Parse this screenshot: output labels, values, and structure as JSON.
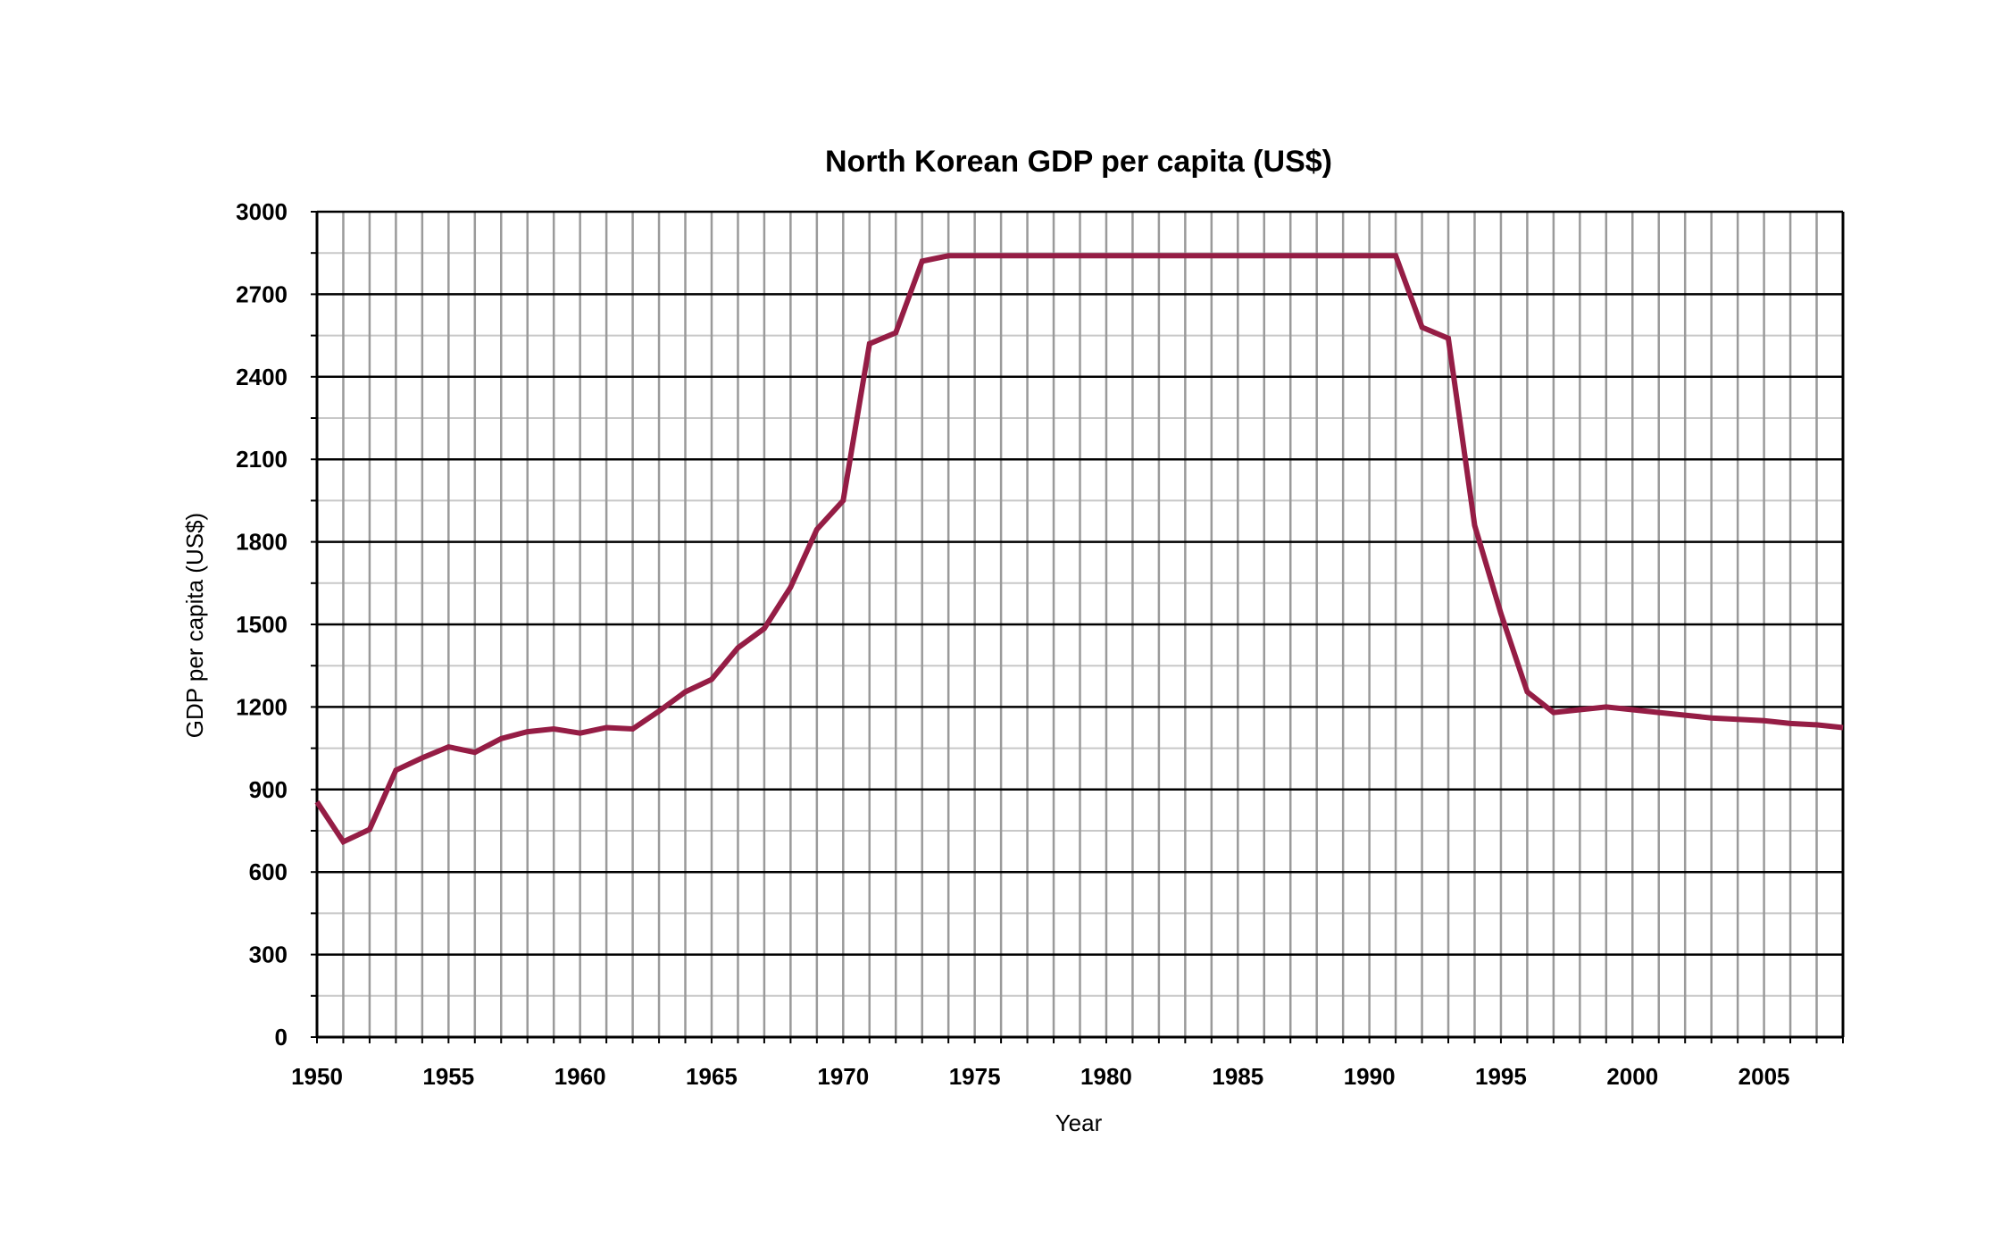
{
  "chart_data": {
    "type": "line",
    "title": "North Korean GDP per capita (US$)",
    "xlabel": "Year",
    "ylabel": "GDP per capita (US$)",
    "xlim": [
      1950,
      2008
    ],
    "ylim": [
      0,
      3000
    ],
    "grid": true,
    "line_color": "#951d45",
    "x_ticks": [
      "1950",
      "1955",
      "1960",
      "1965",
      "1970",
      "1975",
      "1980",
      "1985",
      "1990",
      "1995",
      "2000",
      "2005"
    ],
    "y_ticks": [
      "0",
      "300",
      "600",
      "900",
      "1200",
      "1500",
      "1800",
      "2100",
      "2400",
      "2700",
      "3000"
    ],
    "x": [
      1950,
      1951,
      1952,
      1953,
      1954,
      1955,
      1956,
      1957,
      1958,
      1959,
      1960,
      1961,
      1962,
      1963,
      1964,
      1965,
      1966,
      1967,
      1968,
      1969,
      1970,
      1971,
      1972,
      1973,
      1974,
      1975,
      1976,
      1977,
      1978,
      1979,
      1980,
      1981,
      1982,
      1983,
      1984,
      1985,
      1986,
      1987,
      1988,
      1989,
      1990,
      1991,
      1992,
      1993,
      1994,
      1995,
      1996,
      1997,
      1998,
      1999,
      2000,
      2001,
      2002,
      2003,
      2004,
      2005,
      2006,
      2007,
      2008
    ],
    "series": [
      {
        "values": [
          855,
          710,
          755,
          970,
          1015,
          1055,
          1035,
          1085,
          1110,
          1120,
          1105,
          1125,
          1120,
          1185,
          1255,
          1300,
          1415,
          1485,
          1635,
          1845,
          1950,
          2520,
          2560,
          2820,
          2840,
          2840,
          2840,
          2840,
          2840,
          2840,
          2840,
          2840,
          2840,
          2840,
          2840,
          2840,
          2840,
          2840,
          2840,
          2840,
          2840,
          2840,
          2580,
          2540,
          1860,
          1540,
          1255,
          1180,
          1190,
          1200,
          1190,
          1180,
          1170,
          1160,
          1155,
          1150,
          1140,
          1135,
          1125
        ]
      }
    ]
  }
}
